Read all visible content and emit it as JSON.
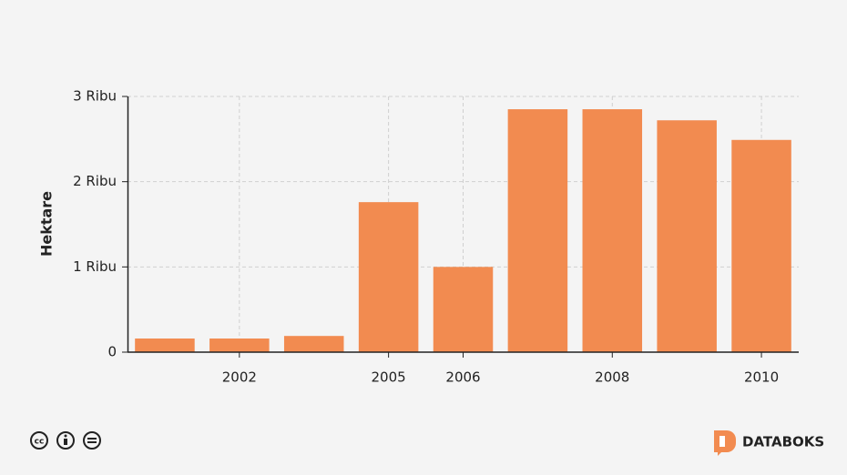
{
  "chart_data": {
    "type": "bar",
    "y_label": "Hektare",
    "categories": [
      null,
      "2002",
      null,
      "2005",
      "2006",
      null,
      "2008",
      null,
      "2010"
    ],
    "values": [
      160,
      160,
      190,
      1760,
      1000,
      2850,
      2850,
      2720,
      2490
    ],
    "color": "#f28b50",
    "ylim": [
      0,
      3000
    ],
    "yticks": [
      0,
      {
        "value": 1000,
        "label": "1 Ribu"
      },
      {
        "value": 2000,
        "label": "2 Ribu"
      },
      {
        "value": 3000,
        "label": "3 Ribu"
      }
    ],
    "grid": true
  },
  "brand": "DATABOKS"
}
